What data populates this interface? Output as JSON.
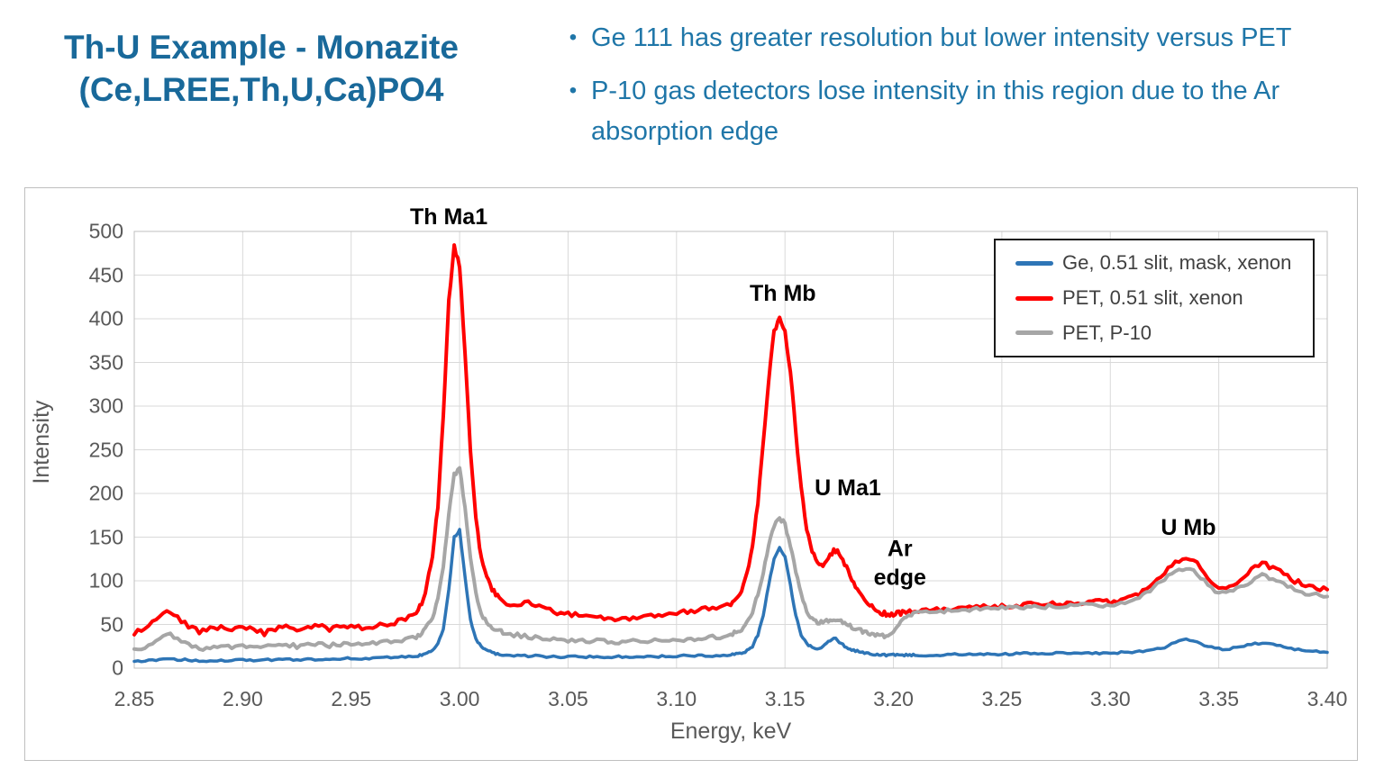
{
  "slide": {
    "title_line1": "Th-U Example - Monazite",
    "title_line2": "(Ce,LREE,Th,U,Ca)PO4",
    "bullet_glyph": "•",
    "bullets": [
      "Ge 111 has greater resolution but lower intensity versus PET",
      "P-10 gas detectors lose intensity in this region due to the Ar absorption edge"
    ]
  },
  "colors": {
    "title_blue": "#19699A",
    "bullet_blue": "#1F76A8",
    "axis_text": "#595959",
    "gridline": "#D9D9D9",
    "plot_border": "#BFBFBF",
    "annotation": "#000000",
    "series_blue": "#2E75B6",
    "series_red": "#FF0000",
    "series_gray": "#A6A6A6"
  },
  "chart_data": {
    "type": "line",
    "title": "",
    "xlabel": "Energy, keV",
    "ylabel": "Intensity",
    "xlim": [
      2.85,
      3.4
    ],
    "ylim": [
      0,
      500
    ],
    "grid": true,
    "legend_position": "top-right",
    "x_ticks": [
      "2.85",
      "2.90",
      "2.95",
      "3.00",
      "3.05",
      "3.10",
      "3.15",
      "3.20",
      "3.25",
      "3.30",
      "3.35",
      "3.40"
    ],
    "y_ticks": [
      0,
      50,
      100,
      150,
      200,
      250,
      300,
      350,
      400,
      450,
      500
    ],
    "annotations": [
      {
        "label": "Th Ma1",
        "kev": 2.995,
        "intensity": 516
      },
      {
        "label": "Th Mb",
        "kev": 3.149,
        "intensity": 429
      },
      {
        "label": "U Ma1",
        "kev": 3.179,
        "intensity": 206
      },
      {
        "label": "Ar\nedge",
        "kev": 3.203,
        "intensity": 120
      },
      {
        "label": "U Mb",
        "kev": 3.336,
        "intensity": 161
      }
    ],
    "x": [
      2.85,
      2.855,
      2.86,
      2.865,
      2.87,
      2.875,
      2.88,
      2.885,
      2.89,
      2.895,
      2.9,
      2.905,
      2.91,
      2.915,
      2.92,
      2.925,
      2.93,
      2.935,
      2.94,
      2.945,
      2.95,
      2.955,
      2.96,
      2.965,
      2.97,
      2.975,
      2.98,
      2.9825,
      2.985,
      2.9875,
      2.99,
      2.9925,
      2.995,
      2.9975,
      3.0,
      3.0025,
      3.005,
      3.0075,
      3.01,
      3.0125,
      3.015,
      3.0175,
      3.02,
      3.025,
      3.03,
      3.035,
      3.04,
      3.045,
      3.05,
      3.055,
      3.06,
      3.065,
      3.07,
      3.075,
      3.08,
      3.085,
      3.09,
      3.095,
      3.1,
      3.105,
      3.11,
      3.115,
      3.12,
      3.125,
      3.1275,
      3.13,
      3.1325,
      3.135,
      3.1375,
      3.14,
      3.1425,
      3.145,
      3.1475,
      3.15,
      3.1525,
      3.155,
      3.1575,
      3.16,
      3.1625,
      3.165,
      3.1675,
      3.17,
      3.1725,
      3.175,
      3.1775,
      3.18,
      3.1825,
      3.185,
      3.1875,
      3.19,
      3.1925,
      3.195,
      3.1975,
      3.2,
      3.2025,
      3.205,
      3.2075,
      3.21,
      3.215,
      3.22,
      3.225,
      3.23,
      3.235,
      3.24,
      3.245,
      3.25,
      3.255,
      3.26,
      3.265,
      3.27,
      3.275,
      3.28,
      3.285,
      3.29,
      3.295,
      3.3,
      3.305,
      3.31,
      3.315,
      3.32,
      3.325,
      3.33,
      3.335,
      3.34,
      3.345,
      3.35,
      3.355,
      3.36,
      3.365,
      3.37,
      3.375,
      3.38,
      3.385,
      3.39,
      3.395,
      3.4
    ],
    "series": [
      {
        "name": "Ge, 0.51 slit, mask, xenon",
        "color": "#2E75B6",
        "width": 3.5,
        "z": 3,
        "jitter": 1.1,
        "values": [
          8,
          8,
          9,
          11,
          10,
          9,
          8,
          9,
          9,
          9,
          10,
          9,
          9,
          10,
          10,
          10,
          10,
          10,
          10,
          11,
          11,
          11,
          11,
          12,
          12,
          13,
          14,
          15,
          17,
          20,
          28,
          45,
          90,
          150,
          158,
          105,
          55,
          33,
          25,
          21,
          18,
          16,
          15,
          14,
          14,
          14,
          13,
          13,
          13,
          13,
          13,
          13,
          13,
          13,
          13,
          13,
          13,
          14,
          14,
          14,
          14,
          14,
          15,
          15,
          16,
          17,
          20,
          25,
          38,
          60,
          95,
          125,
          137,
          128,
          95,
          60,
          38,
          28,
          24,
          22,
          24,
          30,
          35,
          30,
          25,
          22,
          20,
          18,
          17,
          16,
          15,
          15,
          15,
          15,
          15,
          15,
          15,
          15,
          15,
          15,
          16,
          16,
          16,
          16,
          16,
          16,
          16,
          17,
          17,
          17,
          17,
          17,
          17,
          17,
          17,
          17,
          18,
          18,
          19,
          21,
          24,
          30,
          33,
          30,
          25,
          22,
          22,
          24,
          27,
          29,
          27,
          24,
          22,
          20,
          19,
          18
        ]
      },
      {
        "name": "PET, 0.51 slit, xenon",
        "color": "#FF0000",
        "width": 4,
        "z": 1,
        "jitter": 2.6,
        "values": [
          40,
          46,
          58,
          68,
          58,
          48,
          42,
          45,
          47,
          43,
          46,
          44,
          40,
          45,
          48,
          44,
          46,
          48,
          45,
          47,
          49,
          46,
          48,
          50,
          52,
          56,
          65,
          75,
          95,
          130,
          185,
          290,
          420,
          483,
          460,
          360,
          250,
          170,
          125,
          105,
          90,
          82,
          76,
          72,
          76,
          73,
          67,
          63,
          62,
          60,
          59,
          57,
          56,
          55,
          57,
          58,
          60,
          61,
          63,
          65,
          66,
          68,
          70,
          74,
          80,
          90,
          108,
          140,
          190,
          260,
          330,
          385,
          400,
          385,
          340,
          270,
          205,
          160,
          133,
          120,
          118,
          126,
          135,
          132,
          120,
          105,
          92,
          83,
          76,
          70,
          66,
          63,
          62,
          62,
          63,
          64,
          65,
          65,
          66,
          67,
          68,
          68,
          69,
          70,
          70,
          71,
          72,
          72,
          73,
          73,
          74,
          74,
          75,
          75,
          76,
          76,
          78,
          82,
          88,
          98,
          110,
          122,
          128,
          122,
          105,
          90,
          93,
          100,
          112,
          120,
          115,
          108,
          100,
          95,
          92,
          90
        ]
      },
      {
        "name": "PET, P-10",
        "color": "#A6A6A6",
        "width": 4,
        "z": 2,
        "jitter": 2.2,
        "values": [
          20,
          24,
          32,
          40,
          34,
          26,
          22,
          24,
          25,
          24,
          26,
          25,
          24,
          26,
          27,
          25,
          26,
          28,
          26,
          27,
          28,
          27,
          28,
          30,
          30,
          32,
          36,
          40,
          48,
          58,
          80,
          115,
          175,
          222,
          228,
          185,
          125,
          85,
          62,
          52,
          46,
          43,
          41,
          38,
          37,
          35,
          34,
          33,
          32,
          31,
          31,
          31,
          30,
          30,
          31,
          31,
          32,
          32,
          33,
          33,
          34,
          35,
          36,
          38,
          41,
          45,
          52,
          65,
          85,
          110,
          140,
          163,
          172,
          165,
          140,
          110,
          85,
          66,
          56,
          52,
          52,
          55,
          57,
          55,
          51,
          48,
          45,
          43,
          41,
          39,
          38,
          37,
          38,
          42,
          50,
          57,
          61,
          63,
          64,
          65,
          66,
          67,
          67,
          68,
          68,
          69,
          69,
          70,
          70,
          70,
          71,
          71,
          72,
          72,
          72,
          72,
          74,
          78,
          84,
          92,
          102,
          112,
          115,
          108,
          95,
          85,
          88,
          93,
          100,
          106,
          101,
          96,
          90,
          86,
          84,
          82
        ]
      }
    ]
  }
}
